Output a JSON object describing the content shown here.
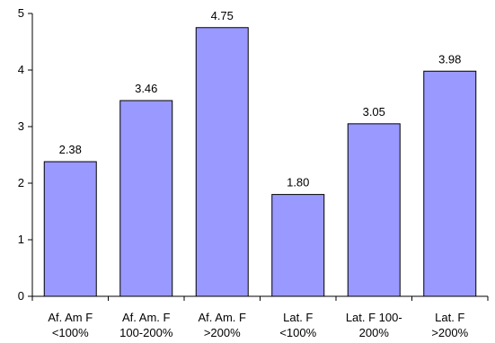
{
  "chart_data": {
    "type": "bar",
    "categories": [
      [
        "Af. Am F",
        "<100%"
      ],
      [
        "Af. Am. F",
        "100-200%"
      ],
      [
        "Af. Am. F",
        ">200%"
      ],
      [
        "Lat. F",
        "<100%"
      ],
      [
        "Lat. F 100-",
        "200%"
      ],
      [
        "Lat. F",
        ">200%"
      ]
    ],
    "values": [
      2.38,
      3.46,
      4.75,
      1.8,
      3.05,
      3.98
    ],
    "data_labels": [
      "2.38",
      "3.46",
      "4.75",
      "1.80",
      "3.05",
      "3.98"
    ],
    "title": "",
    "xlabel": "",
    "ylabel": "",
    "ylim": [
      0,
      5
    ],
    "yticks": [
      0,
      1,
      2,
      3,
      4,
      5
    ],
    "grid": false,
    "legend": "none",
    "colors": {
      "bar_fill": "#9999ff",
      "bar_stroke": "#000000",
      "axis": "#000000"
    }
  }
}
